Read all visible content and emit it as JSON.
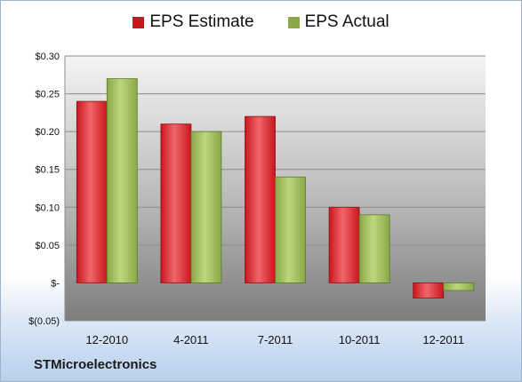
{
  "company": "STMicroelectronics",
  "colors": {
    "estimate": "#c8161d",
    "actual": "#8aa845",
    "estimate_light": "#f0666b",
    "actual_light": "#bdd77f"
  },
  "chart_data": {
    "type": "bar",
    "categories": [
      "12-2010",
      "4-2011",
      "7-2011",
      "10-2011",
      "12-2011"
    ],
    "series": [
      {
        "name": "EPS Estimate",
        "values": [
          0.24,
          0.21,
          0.22,
          0.1,
          -0.02
        ]
      },
      {
        "name": "EPS Actual",
        "values": [
          0.27,
          0.2,
          0.14,
          0.09,
          -0.01
        ]
      }
    ],
    "ylim": [
      -0.05,
      0.3
    ],
    "yticks": [
      0.3,
      0.25,
      0.2,
      0.15,
      0.1,
      0.05,
      0,
      -0.05
    ],
    "ytick_labels": [
      "$0.30",
      "$0.25",
      "$0.20",
      "$0.15",
      "$0.10",
      "$0.05",
      "$-",
      "$(0.05)"
    ],
    "grid": true,
    "legend_position": "top"
  }
}
